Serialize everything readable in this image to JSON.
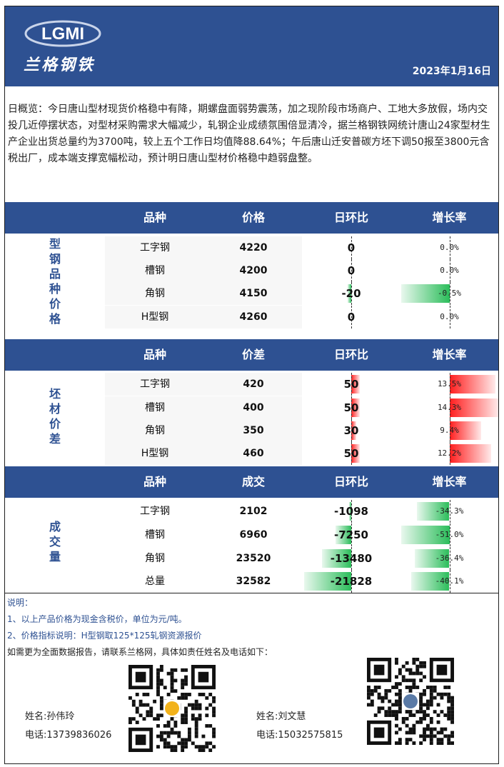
{
  "header": {
    "logo_text": "LGMI",
    "brand": "兰格钢铁",
    "date": "2023年1月16日"
  },
  "summary": "日概览：今日唐山型材现货价格稳中有降，期螺盘面弱势震荡，加之现阶段市场商户、工地大多放假，场内交投几近停摆状态，对型材采购需求大幅减少，轧钢企业成绩氛围倍显清冷，据兰格钢铁网统计唐山24家型材生产企业出货总量约为3700吨，较上五个工作日均值降88.64%；午后唐山迁安普碳方坯下调50报至3800元含税出厂，成本端支撑宽幅松动，预计明日唐山型材价格稳中趋弱盘整。",
  "sections": [
    {
      "label": "型钢品种价格",
      "headers": [
        "品种",
        "价格",
        "日环比",
        "增长率"
      ],
      "rows": [
        {
          "name": "工字钢",
          "value": "4220",
          "change": "0",
          "rate": "0.0%",
          "change_num": 0,
          "rate_num": 0.0
        },
        {
          "name": "槽钢",
          "value": "4200",
          "change": "0",
          "rate": "0.0%",
          "change_num": 0,
          "rate_num": 0.0
        },
        {
          "name": "角钢",
          "value": "4150",
          "change": "-20",
          "rate": "-0.5%",
          "change_num": -20,
          "rate_num": -0.5
        },
        {
          "name": "H型钢",
          "value": "4260",
          "change": "0",
          "rate": "0.0%",
          "change_num": 0,
          "rate_num": 0.0
        }
      ]
    },
    {
      "label": "坯材价差",
      "headers": [
        "品种",
        "价差",
        "日环比",
        "增长率"
      ],
      "rows": [
        {
          "name": "工字钢",
          "value": "420",
          "change": "50",
          "rate": "13.5%",
          "change_num": 50,
          "rate_num": 13.5
        },
        {
          "name": "槽钢",
          "value": "400",
          "change": "50",
          "rate": "14.3%",
          "change_num": 50,
          "rate_num": 14.3
        },
        {
          "name": "角钢",
          "value": "350",
          "change": "30",
          "rate": "9.4%",
          "change_num": 30,
          "rate_num": 9.4
        },
        {
          "name": "H型钢",
          "value": "460",
          "change": "50",
          "rate": "12.2%",
          "change_num": 50,
          "rate_num": 12.2
        }
      ]
    },
    {
      "label": "成交量",
      "headers": [
        "品种",
        "成交",
        "日环比",
        "增长率"
      ],
      "rows": [
        {
          "name": "工字钢",
          "value": "2102",
          "change": "-1098",
          "rate": "-34.3%",
          "change_num": -1098,
          "rate_num": -34.3
        },
        {
          "name": "槽钢",
          "value": "6960",
          "change": "-7250",
          "rate": "-51.0%",
          "change_num": -7250,
          "rate_num": -51.0
        },
        {
          "name": "角钢",
          "value": "23520",
          "change": "-13480",
          "rate": "-36.4%",
          "change_num": -13480,
          "rate_num": -36.4
        },
        {
          "name": "总量",
          "value": "32582",
          "change": "-21828",
          "rate": "-40.1%",
          "change_num": -21828,
          "rate_num": -40.1
        }
      ]
    }
  ],
  "notes": {
    "title": "说明：",
    "line1": "1、以上产品价格为现金含税价，单位为元/吨。",
    "line2": "2、价格指标说明：H型钢取125*125轧钢资源报价",
    "line3": "如需更为全面数据报告，请联系兰格网，具体如责任姓名及电话如下："
  },
  "contacts": [
    {
      "name": "姓名:孙伟玲",
      "phone": "电话:13739836026"
    },
    {
      "name": "姓名:刘文慧",
      "phone": "电话:15032575815"
    }
  ],
  "colors": {
    "brand": "#2e5192",
    "up": "#ff1e1e",
    "down": "#2bbd5a"
  }
}
